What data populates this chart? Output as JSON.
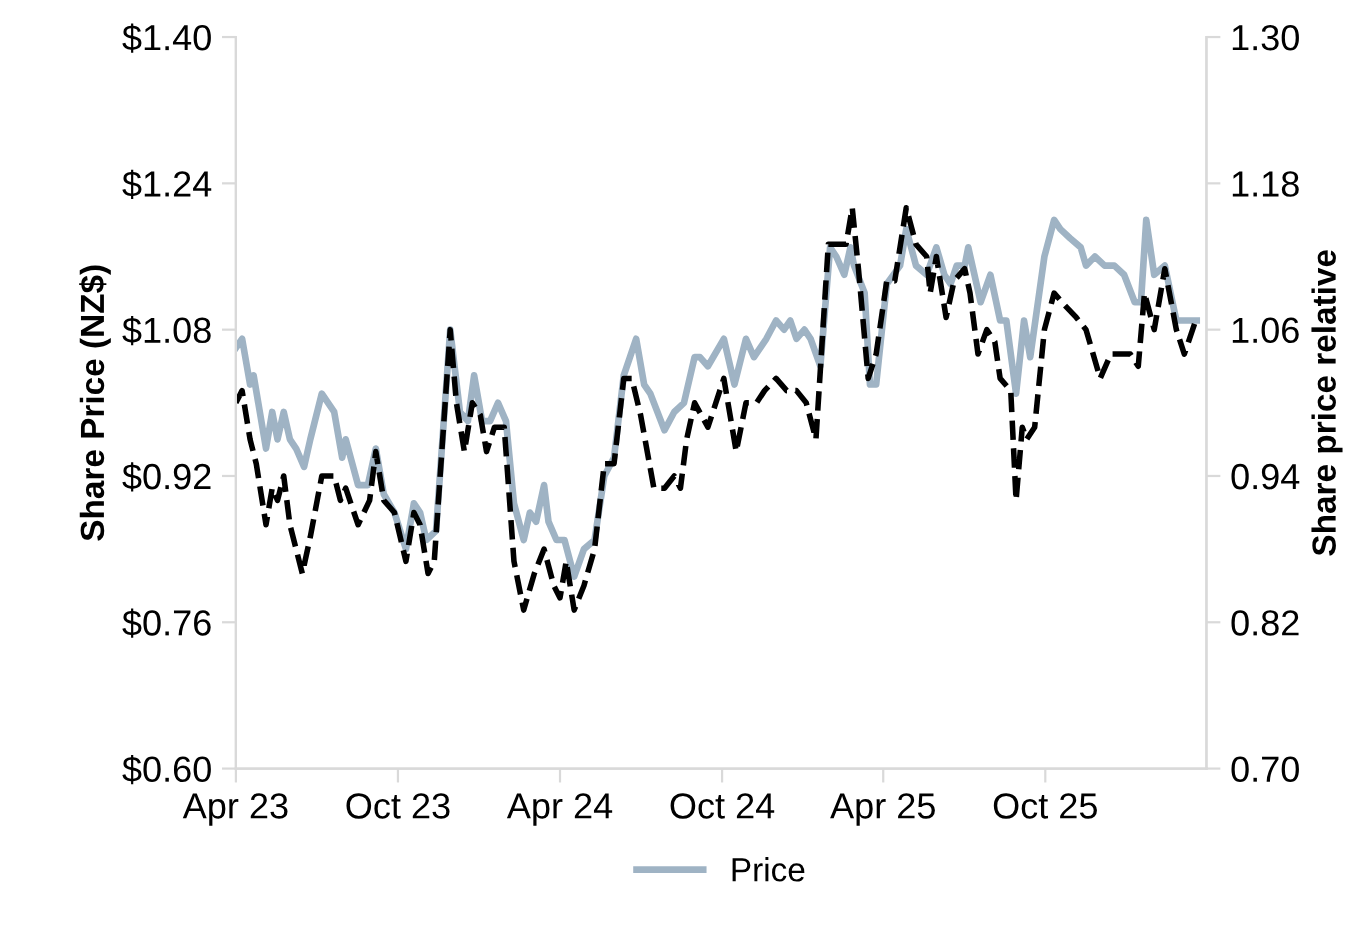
{
  "chart_data": {
    "type": "line",
    "ylabel": "Share Price (NZ$)",
    "y2label": "Share price relative",
    "xlim": [
      "2023-04-01",
      "2026-04-01"
    ],
    "xticks": [
      {
        "value": "2023-04-01",
        "label": "Apr 23"
      },
      {
        "value": "2023-10-01",
        "label": "Oct 23"
      },
      {
        "value": "2024-04-01",
        "label": "Apr 24"
      },
      {
        "value": "2024-10-01",
        "label": "Oct 24"
      },
      {
        "value": "2025-04-01",
        "label": "Apr 25"
      },
      {
        "value": "2025-10-01",
        "label": "Oct 25"
      }
    ],
    "ylim": [
      0.6,
      1.4
    ],
    "yticks": [
      {
        "value": 0.6,
        "label": "$0.60"
      },
      {
        "value": 0.76,
        "label": "$0.76"
      },
      {
        "value": 0.92,
        "label": "$0.92"
      },
      {
        "value": 1.08,
        "label": "$1.08"
      },
      {
        "value": 1.24,
        "label": "$1.24"
      },
      {
        "value": 1.4,
        "label": "$1.40"
      }
    ],
    "y2lim": [
      0.7,
      1.3
    ],
    "y2ticks": [
      {
        "value": 0.7,
        "label": "0.70"
      },
      {
        "value": 0.82,
        "label": "0.82"
      },
      {
        "value": 0.94,
        "label": "0.94"
      },
      {
        "value": 1.06,
        "label": "1.06"
      },
      {
        "value": 1.18,
        "label": "1.18"
      },
      {
        "value": 1.3,
        "label": "1.30"
      }
    ],
    "grid": false,
    "legend": "bottom",
    "marker": "none",
    "series": [
      {
        "name": "Price",
        "color": "#9fb3c4",
        "line_style": "solid",
        "x": [
          "2023-04-01",
          "2023-04-08",
          "2023-04-17",
          "2023-04-21",
          "2023-05-05",
          "2023-05-12",
          "2023-05-18",
          "2023-05-25",
          "2023-06-01",
          "2023-06-08",
          "2023-06-17",
          "2023-06-24",
          "2023-07-07",
          "2023-07-21",
          "2023-07-30",
          "2023-08-03",
          "2023-08-17",
          "2023-08-28",
          "2023-09-06",
          "2023-09-15",
          "2023-09-27",
          "2023-10-10",
          "2023-10-19",
          "2023-10-26",
          "2023-11-02",
          "2023-11-13",
          "2023-11-29",
          "2023-12-10",
          "2023-12-19",
          "2023-12-26",
          "2024-01-04",
          "2024-01-13",
          "2024-01-22",
          "2024-01-31",
          "2024-02-09",
          "2024-02-20",
          "2024-02-27",
          "2024-03-05",
          "2024-03-14",
          "2024-03-19",
          "2024-03-28",
          "2024-04-06",
          "2024-04-17",
          "2024-04-28",
          "2024-05-10",
          "2024-05-21",
          "2024-06-01",
          "2024-06-12",
          "2024-06-19",
          "2024-06-26",
          "2024-07-05",
          "2024-07-12",
          "2024-07-28",
          "2024-08-08",
          "2024-08-19",
          "2024-08-31",
          "2024-09-06",
          "2024-09-15",
          "2024-10-03",
          "2024-10-15",
          "2024-10-28",
          "2024-11-06",
          "2024-11-20",
          "2024-12-01",
          "2024-12-10",
          "2024-12-17",
          "2024-12-24",
          "2025-01-02",
          "2025-01-09",
          "2025-01-20",
          "2025-01-31",
          "2025-02-07",
          "2025-02-16",
          "2025-02-23",
          "2025-02-27",
          "2025-03-11",
          "2025-03-17",
          "2025-03-24",
          "2025-04-05",
          "2025-04-20",
          "2025-04-27",
          "2025-05-08",
          "2025-05-20",
          "2025-05-31",
          "2025-06-09",
          "2025-06-16",
          "2025-06-23",
          "2025-07-02",
          "2025-07-06",
          "2025-07-13",
          "2025-07-20",
          "2025-07-31",
          "2025-08-11",
          "2025-08-18",
          "2025-08-29",
          "2025-09-07",
          "2025-09-14",
          "2025-09-30",
          "2025-10-11",
          "2025-10-18",
          "2025-10-29",
          "2025-11-10",
          "2025-11-16",
          "2025-11-26",
          "2025-12-07",
          "2025-12-18",
          "2025-12-29",
          "2026-01-10",
          "2026-01-17",
          "2026-01-23",
          "2026-02-01",
          "2026-02-13",
          "2026-02-26",
          "2026-03-10",
          "2026-03-21"
        ],
        "values": [
          1.06,
          1.07,
          1.02,
          1.03,
          0.95,
          0.99,
          0.96,
          0.99,
          0.96,
          0.95,
          0.93,
          0.96,
          1.01,
          0.99,
          0.94,
          0.96,
          0.91,
          0.91,
          0.95,
          0.9,
          0.88,
          0.84,
          0.89,
          0.88,
          0.85,
          0.86,
          1.08,
          0.99,
          0.98,
          1.03,
          0.98,
          0.98,
          1.0,
          0.98,
          0.89,
          0.85,
          0.88,
          0.87,
          0.91,
          0.87,
          0.85,
          0.85,
          0.81,
          0.84,
          0.85,
          0.92,
          0.94,
          1.03,
          1.05,
          1.07,
          1.02,
          1.01,
          0.97,
          0.99,
          1.0,
          1.05,
          1.05,
          1.04,
          1.07,
          1.02,
          1.07,
          1.05,
          1.07,
          1.09,
          1.08,
          1.09,
          1.07,
          1.08,
          1.07,
          1.04,
          1.17,
          1.16,
          1.14,
          1.17,
          1.15,
          1.12,
          1.02,
          1.02,
          1.13,
          1.15,
          1.19,
          1.15,
          1.14,
          1.17,
          1.14,
          1.13,
          1.15,
          1.15,
          1.17,
          1.14,
          1.11,
          1.14,
          1.09,
          1.09,
          1.01,
          1.09,
          1.05,
          1.16,
          1.2,
          1.19,
          1.18,
          1.17,
          1.15,
          1.16,
          1.15,
          1.15,
          1.14,
          1.11,
          1.11,
          1.2,
          1.14,
          1.15,
          1.09,
          1.09,
          1.09
        ]
      },
      {
        "color": "#000000",
        "line_style": "dashed",
        "axis": "y2",
        "x": [
          "2023-04-01",
          "2023-04-08",
          "2023-04-17",
          "2023-04-24",
          "2023-05-05",
          "2023-05-12",
          "2023-05-18",
          "2023-05-25",
          "2023-06-01",
          "2023-06-08",
          "2023-06-15",
          "2023-06-24",
          "2023-07-07",
          "2023-07-21",
          "2023-07-28",
          "2023-08-03",
          "2023-08-17",
          "2023-08-30",
          "2023-09-06",
          "2023-09-15",
          "2023-09-27",
          "2023-10-10",
          "2023-10-19",
          "2023-10-26",
          "2023-11-04",
          "2023-11-11",
          "2023-11-29",
          "2023-12-06",
          "2023-12-15",
          "2023-12-24",
          "2024-01-02",
          "2024-01-09",
          "2024-01-18",
          "2024-01-29",
          "2024-02-09",
          "2024-02-20",
          "2024-03-03",
          "2024-03-14",
          "2024-03-25",
          "2024-04-01",
          "2024-04-08",
          "2024-04-17",
          "2024-04-28",
          "2024-05-10",
          "2024-05-21",
          "2024-06-01",
          "2024-06-12",
          "2024-06-21",
          "2024-07-01",
          "2024-07-16",
          "2024-07-28",
          "2024-08-08",
          "2024-08-15",
          "2024-08-22",
          "2024-08-31",
          "2024-09-15",
          "2024-10-03",
          "2024-10-17",
          "2024-10-28",
          "2024-11-09",
          "2024-11-18",
          "2024-12-01",
          "2024-12-13",
          "2024-12-24",
          "2025-01-04",
          "2025-01-15",
          "2025-01-29",
          "2025-02-12",
          "2025-02-18",
          "2025-02-25",
          "2025-03-04",
          "2025-03-15",
          "2025-03-24",
          "2025-04-05",
          "2025-04-14",
          "2025-04-27",
          "2025-05-08",
          "2025-05-20",
          "2025-05-24",
          "2025-05-31",
          "2025-06-11",
          "2025-06-20",
          "2025-07-02",
          "2025-07-08",
          "2025-07-17",
          "2025-07-27",
          "2025-08-05",
          "2025-08-11",
          "2025-08-23",
          "2025-08-29",
          "2025-09-05",
          "2025-09-10",
          "2025-09-19",
          "2025-09-30",
          "2025-10-11",
          "2025-10-23",
          "2025-11-05",
          "2025-11-16",
          "2025-12-02",
          "2025-12-14",
          "2025-12-25",
          "2026-01-05",
          "2026-01-14",
          "2026-01-21",
          "2026-02-01",
          "2026-02-13",
          "2026-02-26",
          "2026-03-07",
          "2026-03-21"
        ],
        "values": [
          1.0,
          1.01,
          0.97,
          0.95,
          0.9,
          0.93,
          0.92,
          0.94,
          0.9,
          0.88,
          0.86,
          0.89,
          0.94,
          0.94,
          0.92,
          0.93,
          0.9,
          0.92,
          0.96,
          0.92,
          0.91,
          0.87,
          0.91,
          0.9,
          0.86,
          0.87,
          1.06,
          1.0,
          0.96,
          1.0,
          0.99,
          0.96,
          0.98,
          0.98,
          0.87,
          0.83,
          0.86,
          0.88,
          0.85,
          0.84,
          0.87,
          0.83,
          0.85,
          0.88,
          0.95,
          0.95,
          1.02,
          1.02,
          0.99,
          0.93,
          0.93,
          0.94,
          0.93,
          0.97,
          1.0,
          0.98,
          1.02,
          0.96,
          1.0,
          1.0,
          1.01,
          1.02,
          1.01,
          1.01,
          1.0,
          0.97,
          1.13,
          1.13,
          1.13,
          1.16,
          1.11,
          1.02,
          1.04,
          1.1,
          1.1,
          1.16,
          1.13,
          1.12,
          1.09,
          1.12,
          1.07,
          1.1,
          1.11,
          1.09,
          1.04,
          1.06,
          1.05,
          1.02,
          1.01,
          0.92,
          0.98,
          0.97,
          0.98,
          1.06,
          1.09,
          1.08,
          1.07,
          1.06,
          1.02,
          1.04,
          1.04,
          1.04,
          1.03,
          1.09,
          1.06,
          1.11,
          1.06,
          1.04,
          1.07
        ]
      }
    ]
  }
}
